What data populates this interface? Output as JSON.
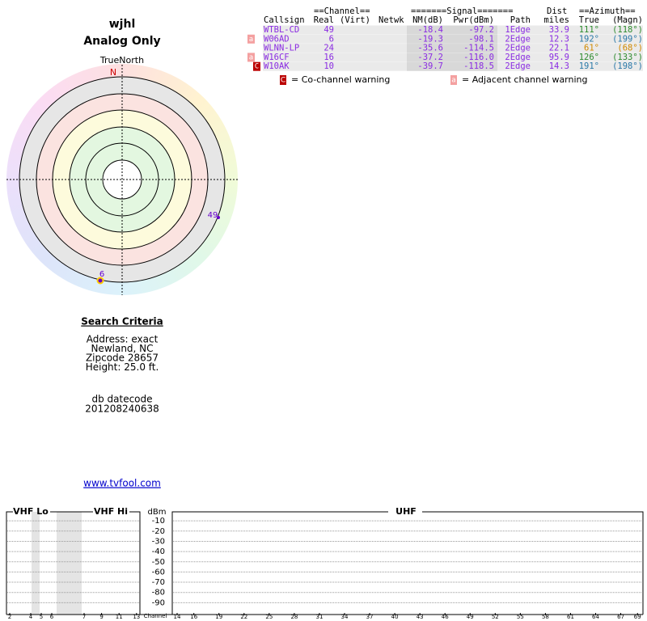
{
  "header": {
    "title": "wjhl",
    "subtitle": "Analog Only"
  },
  "radar": {
    "north_label": "TrueNorth",
    "n": "N",
    "points": [
      {
        "label": "49"
      },
      {
        "label": "6"
      }
    ]
  },
  "table": {
    "group_headers": [
      "==Channel==",
      "=======Signal=======",
      "Dist",
      "==Azimuth=="
    ],
    "columns": [
      "Callsign",
      "Real",
      "(Virt)",
      "Netwk",
      "NM(dB)",
      "Pwr(dBm)",
      "Path",
      "miles",
      "True",
      "(Magn)"
    ],
    "rows": [
      {
        "warning": null,
        "callsign": "WTBL-CD",
        "real": "49",
        "nm": "-18.4",
        "pwr": "-97.2",
        "path": "1Edge",
        "dist": "33.9",
        "true": "111°",
        "magn": "(118°)",
        "az_color": "#2e8b2e"
      },
      {
        "warning": "a",
        "callsign": "W06AD",
        "real": "6",
        "nm": "-19.3",
        "pwr": "-98.1",
        "path": "2Edge",
        "dist": "12.3",
        "true": "192°",
        "magn": "(199°)",
        "az_color": "#2a78a8"
      },
      {
        "warning": null,
        "callsign": "WLNN-LP",
        "real": "24",
        "nm": "-35.6",
        "pwr": "-114.5",
        "path": "2Edge",
        "dist": "22.1",
        "true": "61°",
        "magn": "(68°)",
        "az_color": "#d08a00"
      },
      {
        "warning": "a",
        "callsign": "W16CF",
        "real": "16",
        "nm": "-37.2",
        "pwr": "-116.0",
        "path": "2Edge",
        "dist": "95.9",
        "true": "126°",
        "magn": "(133°)",
        "az_color": "#2e8b2e"
      },
      {
        "warning": "C",
        "callsign": "W10AK",
        "real": "10",
        "nm": "-39.7",
        "pwr": "-118.5",
        "path": "2Edge",
        "dist": "14.3",
        "true": "191°",
        "magn": "(198°)",
        "az_color": "#2a78a8"
      }
    ]
  },
  "legend": [
    {
      "icon": "C",
      "text": "= Co-channel warning"
    },
    {
      "icon": "a",
      "text": "= Adjacent channel warning"
    }
  ],
  "search": {
    "title": "Search Criteria",
    "lines": [
      "Address: exact",
      "Newland, NC",
      "Zipcode 28657",
      "Height: 25.0 ft."
    ],
    "datecode_label": "db datecode",
    "datecode": "201208240638",
    "link": "www.tvfool.com"
  },
  "spectrum": {
    "bands": [
      "VHF Lo",
      "VHF Hi",
      "UHF"
    ],
    "unit": "dBm",
    "x_label": "Channel",
    "ylim": [
      0,
      -100
    ],
    "yticks": [
      -10,
      -20,
      -30,
      -40,
      -50,
      -60,
      -70,
      -80,
      -90
    ],
    "vhf_lo_channels": [
      2,
      4,
      5,
      6
    ],
    "vhf_hi_channels": [
      7,
      9,
      11,
      13
    ],
    "uhf_channels": [
      14,
      16,
      19,
      22,
      25,
      28,
      31,
      34,
      37,
      40,
      43,
      46,
      49,
      52,
      55,
      58,
      61,
      64,
      67,
      69
    ]
  }
}
